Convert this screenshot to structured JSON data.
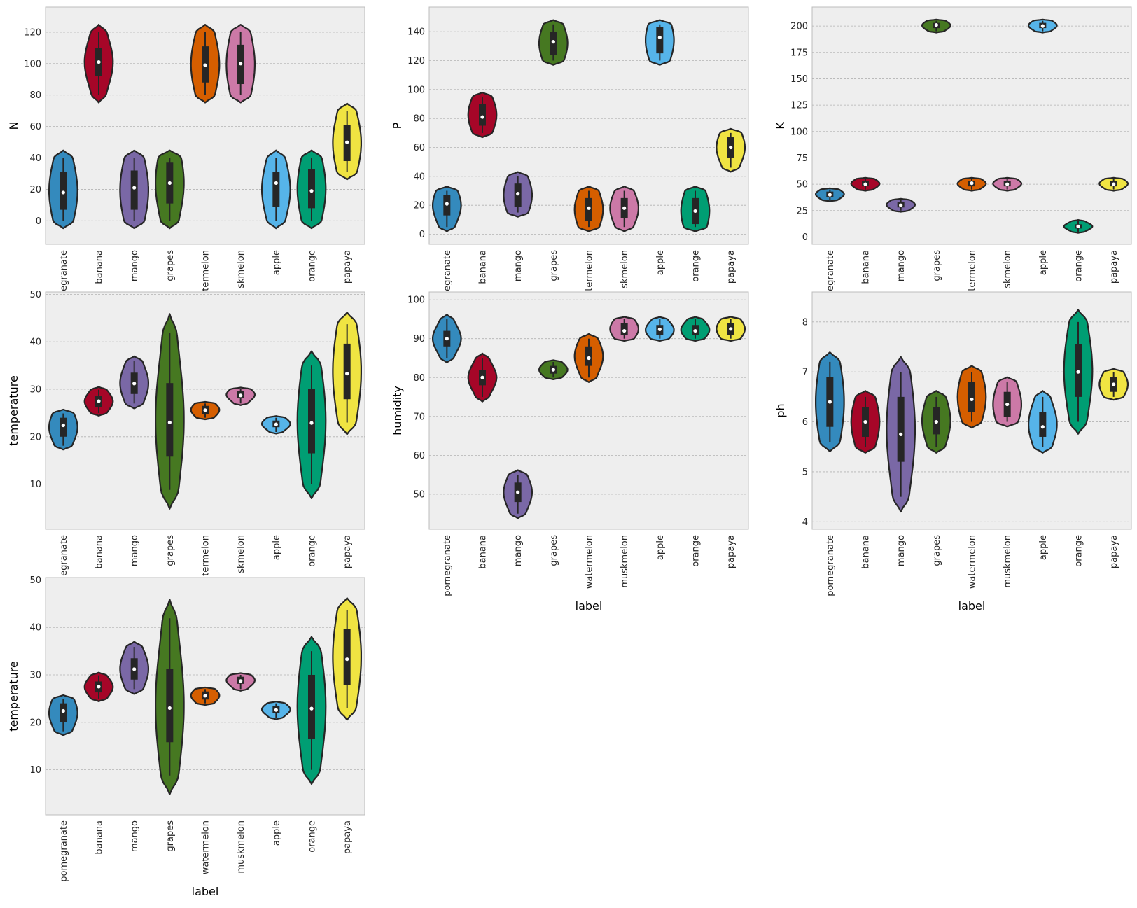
{
  "chart_data": [
    {
      "type": "violin",
      "ylabel": "N",
      "xlabel": "",
      "categories": [
        "pomegranate",
        "banana",
        "mango",
        "grapes",
        "watermelon",
        "muskmelon",
        "apple",
        "orange",
        "papaya"
      ],
      "tick_labels": [
        "egranate",
        "banana",
        "mango",
        "grapes",
        "termelon",
        "skmelon",
        "apple",
        "orange",
        "papaya"
      ],
      "yticks": [
        0,
        20,
        40,
        60,
        80,
        100,
        120
      ],
      "ylim": [
        -15,
        136
      ],
      "violins": [
        {
          "min": 0,
          "q1": 7,
          "median": 18,
          "q3": 31,
          "max": 40
        },
        {
          "min": 80,
          "q1": 92,
          "median": 101,
          "q3": 110,
          "max": 120
        },
        {
          "min": 0,
          "q1": 7,
          "median": 21,
          "q3": 32,
          "max": 40
        },
        {
          "min": 0,
          "q1": 11,
          "median": 24,
          "q3": 37,
          "max": 40
        },
        {
          "min": 80,
          "q1": 88,
          "median": 99,
          "q3": 111,
          "max": 120
        },
        {
          "min": 80,
          "q1": 87,
          "median": 100,
          "q3": 112,
          "max": 120
        },
        {
          "min": 0,
          "q1": 9,
          "median": 24,
          "q3": 31,
          "max": 40
        },
        {
          "min": 0,
          "q1": 8,
          "median": 19,
          "q3": 33,
          "max": 40
        },
        {
          "min": 31,
          "q1": 38,
          "median": 50,
          "q3": 61,
          "max": 70
        }
      ]
    },
    {
      "type": "violin",
      "ylabel": "P",
      "xlabel": "",
      "categories": [
        "pomegranate",
        "banana",
        "mango",
        "grapes",
        "watermelon",
        "muskmelon",
        "apple",
        "orange",
        "papaya"
      ],
      "tick_labels": [
        "egranate",
        "banana",
        "mango",
        "grapes",
        "termelon",
        "skmelon",
        "apple",
        "orange",
        "papaya"
      ],
      "yticks": [
        0,
        20,
        40,
        60,
        80,
        100,
        120,
        140
      ],
      "ylim": [
        -7,
        157
      ],
      "violins": [
        {
          "min": 5,
          "q1": 13,
          "median": 21,
          "q3": 27,
          "max": 30
        },
        {
          "min": 70,
          "q1": 75,
          "median": 81,
          "q3": 90,
          "max": 95
        },
        {
          "min": 15,
          "q1": 19,
          "median": 28,
          "q3": 35,
          "max": 40
        },
        {
          "min": 120,
          "q1": 124,
          "median": 133,
          "q3": 140,
          "max": 145
        },
        {
          "min": 5,
          "q1": 9,
          "median": 18,
          "q3": 25,
          "max": 30
        },
        {
          "min": 5,
          "q1": 11,
          "median": 18,
          "q3": 25,
          "max": 30
        },
        {
          "min": 120,
          "q1": 125,
          "median": 136,
          "q3": 143,
          "max": 145
        },
        {
          "min": 5,
          "q1": 7,
          "median": 16,
          "q3": 25,
          "max": 30
        },
        {
          "min": 46,
          "q1": 53,
          "median": 60,
          "q3": 67,
          "max": 70
        }
      ]
    },
    {
      "type": "violin",
      "ylabel": "K",
      "xlabel": "",
      "categories": [
        "pomegranate",
        "banana",
        "mango",
        "grapes",
        "watermelon",
        "muskmelon",
        "apple",
        "orange",
        "papaya"
      ],
      "tick_labels": [
        "egranate",
        "banana",
        "mango",
        "grapes",
        "termelon",
        "skmelon",
        "apple",
        "orange",
        "papaya"
      ],
      "yticks": [
        0,
        25,
        50,
        75,
        100,
        125,
        150,
        175,
        200
      ],
      "ylim": [
        -7,
        218
      ],
      "violins": [
        {
          "min": 35,
          "q1": 38,
          "median": 40,
          "q3": 43,
          "max": 45
        },
        {
          "min": 45,
          "q1": 48,
          "median": 50,
          "q3": 53,
          "max": 55
        },
        {
          "min": 25,
          "q1": 28,
          "median": 30,
          "q3": 33,
          "max": 35
        },
        {
          "min": 195,
          "q1": 198,
          "median": 201,
          "q3": 203,
          "max": 205
        },
        {
          "min": 45,
          "q1": 48,
          "median": 51,
          "q3": 53,
          "max": 55
        },
        {
          "min": 45,
          "q1": 48,
          "median": 50,
          "q3": 53,
          "max": 55
        },
        {
          "min": 195,
          "q1": 198,
          "median": 200,
          "q3": 203,
          "max": 205
        },
        {
          "min": 5,
          "q1": 8,
          "median": 10,
          "q3": 12,
          "max": 15
        },
        {
          "min": 45,
          "q1": 48,
          "median": 50,
          "q3": 53,
          "max": 55
        }
      ]
    },
    {
      "type": "violin",
      "ylabel": "temperature",
      "xlabel": "",
      "categories": [
        "pomegranate",
        "banana",
        "mango",
        "grapes",
        "watermelon",
        "muskmelon",
        "apple",
        "orange",
        "papaya"
      ],
      "tick_labels": [
        "egranate",
        "banana",
        "mango",
        "grapes",
        "termelon",
        "skmelon",
        "apple",
        "orange",
        "papaya"
      ],
      "yticks": [
        10,
        20,
        30,
        40,
        50
      ],
      "ylim": [
        0.5,
        50.5
      ],
      "violins": [
        {
          "min": 18.1,
          "q1": 20,
          "median": 22.4,
          "q3": 24,
          "max": 24.9
        },
        {
          "min": 25,
          "q1": 26.3,
          "median": 27.5,
          "q3": 28.6,
          "max": 29.9
        },
        {
          "min": 27,
          "q1": 29,
          "median": 31.2,
          "q3": 33.5,
          "max": 35.9
        },
        {
          "min": 8.8,
          "q1": 15.8,
          "median": 23,
          "q3": 31.3,
          "max": 41.9
        },
        {
          "min": 24,
          "q1": 24.8,
          "median": 25.6,
          "q3": 26.5,
          "max": 27
        },
        {
          "min": 27,
          "q1": 28.1,
          "median": 28.7,
          "q3": 29.6,
          "max": 30
        },
        {
          "min": 21,
          "q1": 22,
          "median": 22.6,
          "q3": 23.4,
          "max": 24
        },
        {
          "min": 10,
          "q1": 16.5,
          "median": 22.9,
          "q3": 30,
          "max": 35
        },
        {
          "min": 23,
          "q1": 27.9,
          "median": 33.3,
          "q3": 39.6,
          "max": 43.7
        }
      ]
    },
    {
      "type": "violin",
      "ylabel": "humidity",
      "xlabel": "label",
      "categories": [
        "pomegranate",
        "banana",
        "mango",
        "grapes",
        "watermelon",
        "muskmelon",
        "apple",
        "orange",
        "papaya"
      ],
      "tick_labels": [
        "pomegranate",
        "banana",
        "mango",
        "grapes",
        "watermelon",
        "muskmelon",
        "apple",
        "orange",
        "papaya"
      ],
      "yticks": [
        50,
        60,
        70,
        80,
        90,
        100
      ],
      "ylim": [
        41,
        102
      ],
      "violins": [
        {
          "min": 85,
          "q1": 88,
          "median": 90,
          "q3": 92,
          "max": 95
        },
        {
          "min": 75,
          "q1": 78,
          "median": 80,
          "q3": 82,
          "max": 85
        },
        {
          "min": 45,
          "q1": 48,
          "median": 50.5,
          "q3": 53,
          "max": 55
        },
        {
          "min": 80,
          "q1": 81,
          "median": 82,
          "q3": 83,
          "max": 84
        },
        {
          "min": 80,
          "q1": 83,
          "median": 85,
          "q3": 88,
          "max": 90
        },
        {
          "min": 90,
          "q1": 91,
          "median": 92,
          "q3": 94,
          "max": 95
        },
        {
          "min": 90,
          "q1": 91,
          "median": 92.4,
          "q3": 93.5,
          "max": 95
        },
        {
          "min": 90,
          "q1": 91,
          "median": 92,
          "q3": 93.5,
          "max": 95
        },
        {
          "min": 90,
          "q1": 91,
          "median": 92.5,
          "q3": 94,
          "max": 95
        }
      ]
    },
    {
      "type": "violin",
      "ylabel": "ph",
      "xlabel": "label",
      "categories": [
        "pomegranate",
        "banana",
        "mango",
        "grapes",
        "watermelon",
        "muskmelon",
        "apple",
        "orange",
        "papaya"
      ],
      "tick_labels": [
        "pomegranate",
        "banana",
        "mango",
        "grapes",
        "watermelon",
        "muskmelon",
        "apple",
        "orange",
        "papaya"
      ],
      "yticks": [
        4,
        5,
        6,
        7,
        8
      ],
      "ylim": [
        3.85,
        8.6
      ],
      "violins": [
        {
          "min": 5.6,
          "q1": 5.9,
          "median": 6.4,
          "q3": 6.9,
          "max": 7.2
        },
        {
          "min": 5.5,
          "q1": 5.7,
          "median": 6,
          "q3": 6.3,
          "max": 6.5
        },
        {
          "min": 4.5,
          "q1": 5.2,
          "median": 5.75,
          "q3": 6.5,
          "max": 7
        },
        {
          "min": 5.5,
          "q1": 5.75,
          "median": 6,
          "q3": 6.3,
          "max": 6.5
        },
        {
          "min": 6,
          "q1": 6.2,
          "median": 6.45,
          "q3": 6.8,
          "max": 7
        },
        {
          "min": 6,
          "q1": 6.1,
          "median": 6.35,
          "q3": 6.6,
          "max": 6.8
        },
        {
          "min": 5.5,
          "q1": 5.7,
          "median": 5.9,
          "q3": 6.2,
          "max": 6.5
        },
        {
          "min": 6,
          "q1": 6.5,
          "median": 7,
          "q3": 7.55,
          "max": 8
        },
        {
          "min": 6.5,
          "q1": 6.6,
          "median": 6.75,
          "q3": 6.9,
          "max": 7
        }
      ]
    },
    {
      "type": "violin",
      "ylabel": "temperature",
      "xlabel": "label",
      "categories": [
        "pomegranate",
        "banana",
        "mango",
        "grapes",
        "watermelon",
        "muskmelon",
        "apple",
        "orange",
        "papaya"
      ],
      "tick_labels": [
        "pomegranate",
        "banana",
        "mango",
        "grapes",
        "watermelon",
        "muskmelon",
        "apple",
        "orange",
        "papaya"
      ],
      "yticks": [
        10,
        20,
        30,
        40,
        50
      ],
      "ylim": [
        0.5,
        50.5
      ],
      "violins": [
        {
          "min": 18.1,
          "q1": 20,
          "median": 22.4,
          "q3": 24,
          "max": 24.9
        },
        {
          "min": 25,
          "q1": 26.3,
          "median": 27.5,
          "q3": 28.6,
          "max": 29.9
        },
        {
          "min": 27,
          "q1": 29,
          "median": 31.2,
          "q3": 33.5,
          "max": 35.9
        },
        {
          "min": 8.8,
          "q1": 15.8,
          "median": 23,
          "q3": 31.3,
          "max": 41.9
        },
        {
          "min": 24,
          "q1": 24.8,
          "median": 25.6,
          "q3": 26.5,
          "max": 27
        },
        {
          "min": 27,
          "q1": 28.1,
          "median": 28.7,
          "q3": 29.6,
          "max": 30
        },
        {
          "min": 21,
          "q1": 22,
          "median": 22.6,
          "q3": 23.4,
          "max": 24
        },
        {
          "min": 10,
          "q1": 16.5,
          "median": 22.9,
          "q3": 30,
          "max": 35
        },
        {
          "min": 23,
          "q1": 27.9,
          "median": 33.3,
          "q3": 39.6,
          "max": 43.7
        }
      ]
    }
  ],
  "palette": [
    "#348abd",
    "#a60628",
    "#7a68a6",
    "#467821",
    "#d55e00",
    "#cc79a7",
    "#56b4e9",
    "#009e73",
    "#f0e442"
  ],
  "style": {
    "axes_bg": "#eeeeee",
    "grid_color": "#b2b2b2",
    "outline": "#262626"
  }
}
